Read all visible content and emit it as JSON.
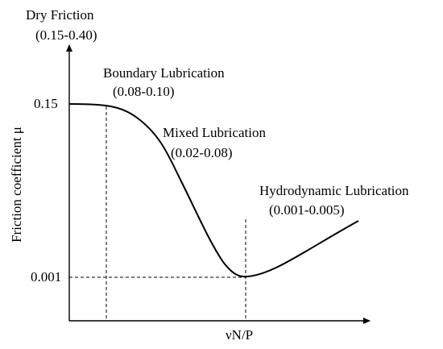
{
  "diagram": {
    "regimes": [
      {
        "name": "Dry Friction",
        "range": "(0.15-0.40)"
      },
      {
        "name": "Boundary Lubrication",
        "range": "(0.08-0.10)"
      },
      {
        "name": "Mixed Lubrication",
        "range": "(0.02-0.08)"
      },
      {
        "name": "Hydrodynamic Lubrication",
        "range": "(0.001-0.005)"
      }
    ],
    "y_axis_label": "Friction coefficient μ",
    "x_axis_label": "νN/P",
    "y_ticks": [
      "0.15",
      "0.001"
    ]
  }
}
